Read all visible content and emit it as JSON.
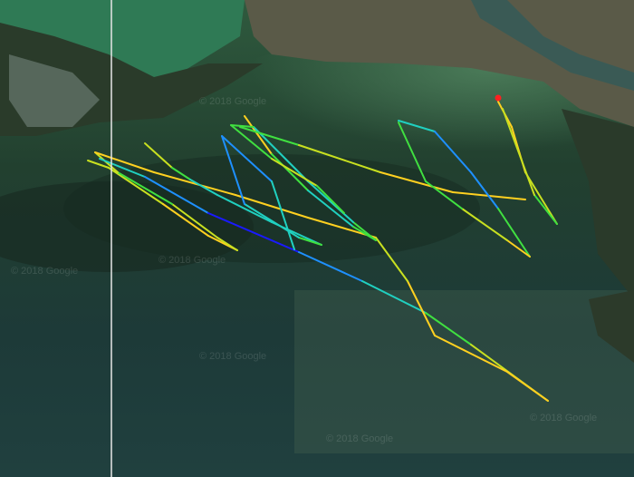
{
  "map": {
    "type": "satellite",
    "watermark": "© 2018 Google",
    "watermark_count": 6,
    "track_colormap": [
      "#1a1aff",
      "#1e90ff",
      "#20d0c0",
      "#40e040",
      "#c8e020",
      "#ffd020"
    ],
    "start_marker_color": "#ff2020",
    "divider_color": "#e8e8e8"
  }
}
